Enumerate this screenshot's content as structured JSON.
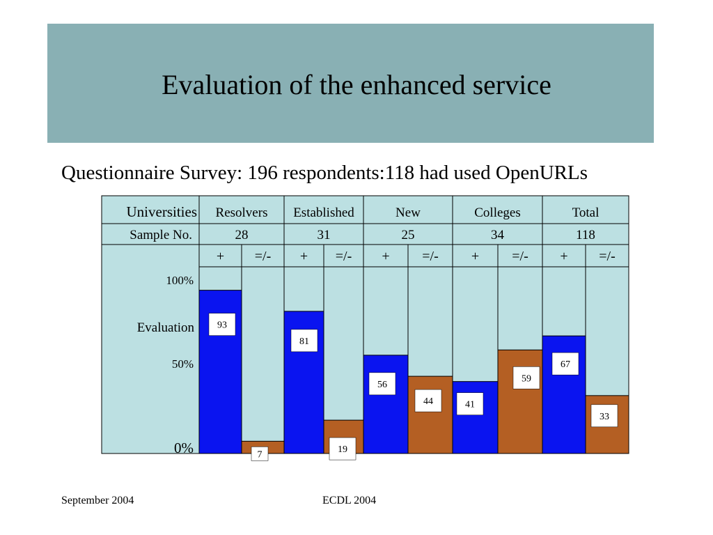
{
  "slide": {
    "title": "Evaluation of the enhanced service",
    "subtitle": "Questionnaire Survey: 196 respondents:118 had used OpenURLs",
    "footer_left": "September 2004",
    "footer_center": "ECDL 2004"
  },
  "colors": {
    "banner": "#89b0b4",
    "panel": "#bce0e2",
    "positive": "#0a14f0",
    "neutral_negative": "#b45f23"
  },
  "chart_data": {
    "type": "bar",
    "row_labels": {
      "header": "Universities",
      "sample": "Sample No.",
      "evaluation": "Evaluation"
    },
    "groups": [
      {
        "name": "Resolvers",
        "sample": "28"
      },
      {
        "name": "Established",
        "sample": "31"
      },
      {
        "name": "New",
        "sample": "25"
      },
      {
        "name": "Colleges",
        "sample": "34"
      },
      {
        "name": "Total",
        "sample": "118"
      }
    ],
    "sub_labels": [
      "+",
      "=/-"
    ],
    "series": [
      {
        "name": "+",
        "values": [
          93,
          81,
          56,
          41,
          67
        ]
      },
      {
        "name": "=/-",
        "values": [
          7,
          19,
          44,
          59,
          33
        ]
      }
    ],
    "y_ticks": [
      "100%",
      "50%",
      "0%"
    ],
    "ylim": [
      0,
      100
    ]
  }
}
